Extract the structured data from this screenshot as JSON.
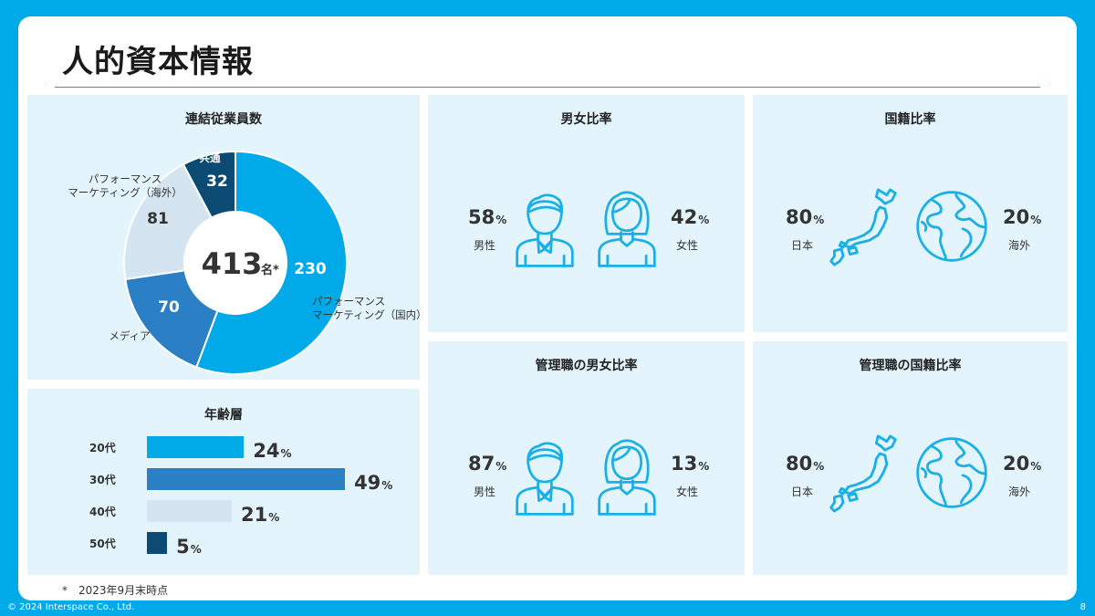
{
  "title": "人的資本情報",
  "footnote": "*　2023年9月末時点",
  "copyright": "© 2024 Interspace Co., Ltd.",
  "page_number": "8",
  "colors": {
    "accent": "#00a9e8",
    "panel": "#e3f4fc",
    "dark": "#0a4a73",
    "mid": "#2a7fc5",
    "light": "#d4e5f1",
    "icon": "#1ab0e6"
  },
  "employees": {
    "title": "連結従業員数",
    "total": "413",
    "total_unit": "名*",
    "segments": [
      {
        "label": "パフォーマンス\nマーケティング（国内）",
        "value": "230",
        "color": "#00a9e8"
      },
      {
        "label": "メディア",
        "value": "70",
        "color": "#2a7fc5"
      },
      {
        "label": "パフォーマンス\nマーケティング（海外）",
        "value": "81",
        "color": "#d4e5f1"
      },
      {
        "label": "共通",
        "value": "32",
        "color": "#0a4a73"
      }
    ]
  },
  "age": {
    "title": "年齢層",
    "unit": "%",
    "rows": [
      {
        "label": "20代",
        "value": "24",
        "color": "#00a9e8"
      },
      {
        "label": "30代",
        "value": "49",
        "color": "#2a7fc5"
      },
      {
        "label": "40代",
        "value": "21",
        "color": "#d4e5f1"
      },
      {
        "label": "50代",
        "value": "5",
        "color": "#0a4a73"
      }
    ]
  },
  "gender": {
    "title": "男女比率",
    "male_value": "58",
    "male_label": "男性",
    "female_value": "42",
    "female_label": "女性",
    "unit": "%"
  },
  "mgr_gender": {
    "title": "管理職の男女比率",
    "male_value": "87",
    "male_label": "男性",
    "female_value": "13",
    "female_label": "女性",
    "unit": "%"
  },
  "nationality": {
    "title": "国籍比率",
    "japan_value": "80",
    "japan_label": "日本",
    "overseas_value": "20",
    "overseas_label": "海外",
    "unit": "%"
  },
  "mgr_nationality": {
    "title": "管理職の国籍比率",
    "japan_value": "80",
    "japan_label": "日本",
    "overseas_value": "20",
    "overseas_label": "海外",
    "unit": "%"
  },
  "chart_data": [
    {
      "type": "pie",
      "title": "連結従業員数",
      "categories": [
        "パフォーマンスマーケティング（国内）",
        "メディア",
        "パフォーマンスマーケティング（海外）",
        "共通"
      ],
      "values": [
        230,
        70,
        81,
        32
      ]
    },
    {
      "type": "bar",
      "title": "年齢層",
      "categories": [
        "20代",
        "30代",
        "40代",
        "50代"
      ],
      "values": [
        24,
        49,
        21,
        5
      ]
    },
    {
      "type": "table",
      "title": "男女比率",
      "categories": [
        "男性",
        "女性"
      ],
      "values": [
        58,
        42
      ]
    },
    {
      "type": "table",
      "title": "管理職の男女比率",
      "categories": [
        "男性",
        "女性"
      ],
      "values": [
        87,
        13
      ]
    },
    {
      "type": "table",
      "title": "国籍比率",
      "categories": [
        "日本",
        "海外"
      ],
      "values": [
        80,
        20
      ]
    },
    {
      "type": "table",
      "title": "管理職の国籍比率",
      "categories": [
        "日本",
        "海外"
      ],
      "values": [
        80,
        20
      ]
    }
  ]
}
